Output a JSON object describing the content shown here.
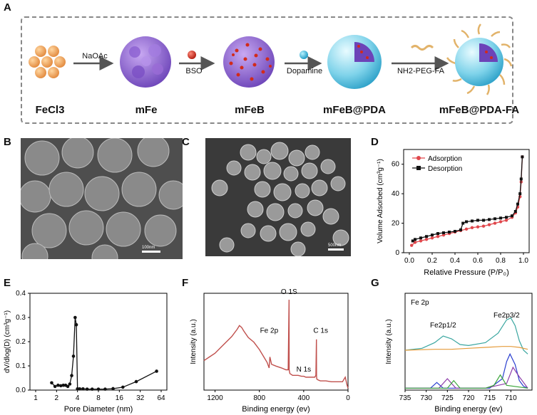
{
  "panel_labels": {
    "a": "A",
    "b": "B",
    "c": "C",
    "d": "D",
    "e": "E",
    "f": "F",
    "g": "G"
  },
  "scheme": {
    "steps": [
      "FeCl3",
      "mFe",
      "mFeB",
      "mFeB@PDA",
      "mFeB@PDA-FA"
    ],
    "reagents": [
      "NaOAc",
      "BSO",
      "Dopamine",
      "NH2-PEG-FA"
    ],
    "colors": {
      "fecl3": "#f0a860",
      "mfe": "#9a6cd6",
      "bso": "#d22a1a",
      "dopamine": "#22b7d8",
      "pda": "#7fd3ea",
      "peg": "#e2b36a"
    }
  },
  "sem": {
    "b_scale": "100nm",
    "c_scale": "500nm"
  },
  "chart_data": [
    {
      "panel": "D",
      "type": "line",
      "xlabel": "Relative Pressure (P/P₀)",
      "ylabel": "Volume Adsorbed (cm³g⁻¹)",
      "xlim": [
        -0.05,
        1.05
      ],
      "ylim": [
        0,
        70
      ],
      "xticks": [
        "0.0",
        "0.2",
        "0.4",
        "0.6",
        "0.8",
        "1.0"
      ],
      "yticks": [
        "0",
        "20",
        "40",
        "60"
      ],
      "legend_position": "top-left",
      "series": [
        {
          "name": "Adsorption",
          "color": "#e0474c",
          "marker": "circle",
          "x": [
            0.02,
            0.05,
            0.1,
            0.15,
            0.2,
            0.25,
            0.3,
            0.35,
            0.4,
            0.45,
            0.5,
            0.55,
            0.6,
            0.65,
            0.7,
            0.75,
            0.8,
            0.85,
            0.9,
            0.93,
            0.95,
            0.97,
            0.98,
            0.99
          ],
          "y": [
            5,
            7,
            8,
            9,
            10,
            11,
            12,
            13,
            14,
            15,
            16,
            17,
            17.5,
            18,
            19,
            20,
            21,
            22,
            24,
            27,
            31,
            38,
            48,
            65
          ]
        },
        {
          "name": "Desorption",
          "color": "#111111",
          "marker": "square",
          "x": [
            0.99,
            0.98,
            0.97,
            0.95,
            0.93,
            0.9,
            0.85,
            0.8,
            0.75,
            0.7,
            0.65,
            0.6,
            0.55,
            0.5,
            0.47,
            0.45,
            0.4,
            0.35,
            0.3,
            0.25,
            0.2,
            0.15,
            0.1,
            0.05,
            0.03
          ],
          "y": [
            65,
            50,
            40,
            33,
            28,
            25,
            24,
            23.5,
            23,
            22.5,
            22,
            22,
            21.5,
            21,
            20,
            15.5,
            14.5,
            14,
            13.5,
            13,
            12,
            11,
            10,
            9,
            8
          ]
        }
      ]
    },
    {
      "panel": "E",
      "type": "line",
      "xlabel": "Pore Diameter (nm)",
      "ylabel": "dV/dlog(D) (cm³g⁻¹)",
      "xscale": "log2",
      "xlim": [
        1,
        64
      ],
      "ylim": [
        0,
        0.4
      ],
      "xticks": [
        "1",
        "2",
        "4",
        "8",
        "16",
        "32",
        "64"
      ],
      "yticks": [
        "0.0",
        "0.1",
        "0.2",
        "0.3",
        "0.4"
      ],
      "series": [
        {
          "color": "#111111",
          "marker": "circle",
          "x": [
            1.7,
            1.9,
            2.1,
            2.3,
            2.5,
            2.7,
            2.9,
            3.1,
            3.3,
            3.5,
            3.7,
            3.85,
            4.0,
            4.3,
            4.8,
            5.5,
            6.5,
            8,
            10,
            13,
            18,
            28,
            55
          ],
          "y": [
            0.03,
            0.015,
            0.02,
            0.018,
            0.02,
            0.02,
            0.015,
            0.025,
            0.06,
            0.14,
            0.3,
            0.27,
            0.005,
            0.005,
            0.005,
            0.004,
            0.004,
            0.004,
            0.004,
            0.006,
            0.012,
            0.035,
            0.078
          ]
        }
      ]
    },
    {
      "panel": "F",
      "type": "line",
      "xlabel": "Binding energy (ev)",
      "ylabel": "Intensity (a.u.)",
      "xlim": [
        1300,
        0
      ],
      "xticks": [
        "1200",
        "800",
        "400",
        "0"
      ],
      "annotations": [
        "O 1S",
        "Fe 2p",
        "C 1s",
        "N 1s"
      ],
      "series": [
        {
          "color": "#c0504d",
          "x": [
            1300,
            1250,
            1200,
            1150,
            1100,
            1050,
            1000,
            980,
            960,
            940,
            900,
            850,
            800,
            760,
            730,
            712,
            705,
            690,
            650,
            600,
            560,
            540,
            532,
            531,
            525,
            500,
            450,
            420,
            400,
            380,
            350,
            300,
            290,
            285,
            284,
            282,
            270,
            250,
            200,
            150,
            100,
            50,
            25,
            10,
            0
          ],
          "y": [
            0.32,
            0.36,
            0.4,
            0.46,
            0.52,
            0.58,
            0.66,
            0.7,
            0.68,
            0.64,
            0.57,
            0.52,
            0.44,
            0.36,
            0.3,
            0.24,
            0.36,
            0.28,
            0.26,
            0.24,
            0.22,
            0.22,
            0.98,
            0.22,
            0.18,
            0.16,
            0.16,
            0.15,
            0.15,
            0.14,
            0.14,
            0.14,
            0.16,
            0.55,
            0.15,
            0.12,
            0.11,
            0.1,
            0.1,
            0.09,
            0.09,
            0.09,
            0.14,
            0.06,
            0.02
          ]
        }
      ]
    },
    {
      "panel": "G",
      "type": "line",
      "title": "Fe 2p",
      "xlabel": "Binding energy (ev)",
      "ylabel": "Intensity (a.u.)",
      "xlim": [
        735,
        705
      ],
      "xticks": [
        "735",
        "730",
        "725",
        "720",
        "715",
        "710"
      ],
      "annotations": [
        "Fe2p1/2",
        "Fe2p3/2"
      ],
      "series": [
        {
          "color": "#3aa6a0",
          "x": [
            735,
            731,
            728,
            726,
            724,
            722,
            720,
            716,
            713,
            711,
            710,
            709,
            708,
            707,
            706
          ],
          "y": [
            0.4,
            0.42,
            0.48,
            0.55,
            0.52,
            0.46,
            0.45,
            0.48,
            0.58,
            0.72,
            0.74,
            0.66,
            0.5,
            0.4,
            0.36
          ]
        },
        {
          "color": "#e59b3a",
          "x": [
            735,
            728,
            724,
            720,
            716,
            712,
            710,
            708,
            706
          ],
          "y": [
            0.4,
            0.41,
            0.41,
            0.42,
            0.43,
            0.44,
            0.44,
            0.43,
            0.41
          ]
        },
        {
          "color": "#2a3fd0",
          "x": [
            735,
            729,
            727.5,
            726,
            722,
            715,
            712,
            711,
            710.2,
            709,
            708,
            707,
            706
          ],
          "y": [
            0.0,
            0.0,
            0.06,
            0.0,
            0.0,
            0.0,
            0.1,
            0.28,
            0.36,
            0.25,
            0.08,
            0.02,
            0.0
          ]
        },
        {
          "color": "#8b3aa8",
          "x": [
            735,
            727,
            725,
            723,
            716,
            711,
            709.5,
            708,
            706
          ],
          "y": [
            0.0,
            0.0,
            0.1,
            0.0,
            0.0,
            0.05,
            0.22,
            0.12,
            0.0
          ]
        },
        {
          "color": "#3aa63a",
          "x": [
            735,
            725,
            723.5,
            722,
            716,
            714,
            712.5,
            711,
            706
          ],
          "y": [
            0.0,
            0.0,
            0.08,
            0.0,
            0.0,
            0.03,
            0.14,
            0.03,
            0.0
          ]
        }
      ]
    }
  ]
}
